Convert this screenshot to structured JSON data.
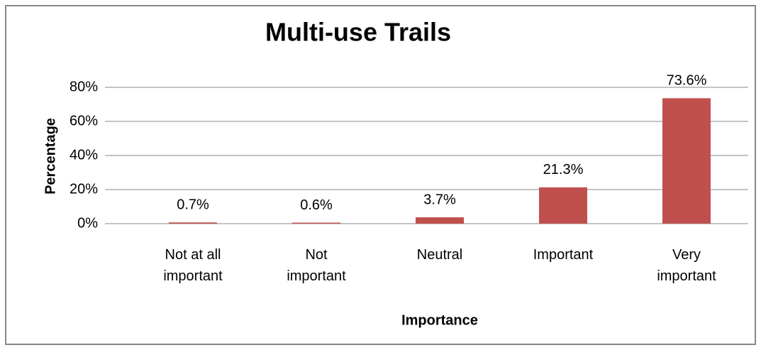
{
  "chart_data": {
    "type": "bar",
    "title": "Multi-use Trails",
    "x_label": "Importance",
    "y_label": "Percentage",
    "categories": [
      "Not at all important",
      "Not important",
      "Neutral",
      "Important",
      "Very important"
    ],
    "values": [
      0.7,
      0.6,
      3.7,
      21.3,
      73.6
    ],
    "value_labels": [
      "0.7%",
      "0.6%",
      "3.7%",
      "21.3%",
      "73.6%"
    ],
    "color": "#c0504d",
    "ylim": [
      0,
      80
    ],
    "yticks": [
      {
        "value": 0,
        "label": "0%"
      },
      {
        "value": 20,
        "label": "20%"
      },
      {
        "value": 40,
        "label": "40%"
      },
      {
        "value": 60,
        "label": "60%"
      },
      {
        "value": 80,
        "label": "80%"
      }
    ],
    "grid": true
  }
}
